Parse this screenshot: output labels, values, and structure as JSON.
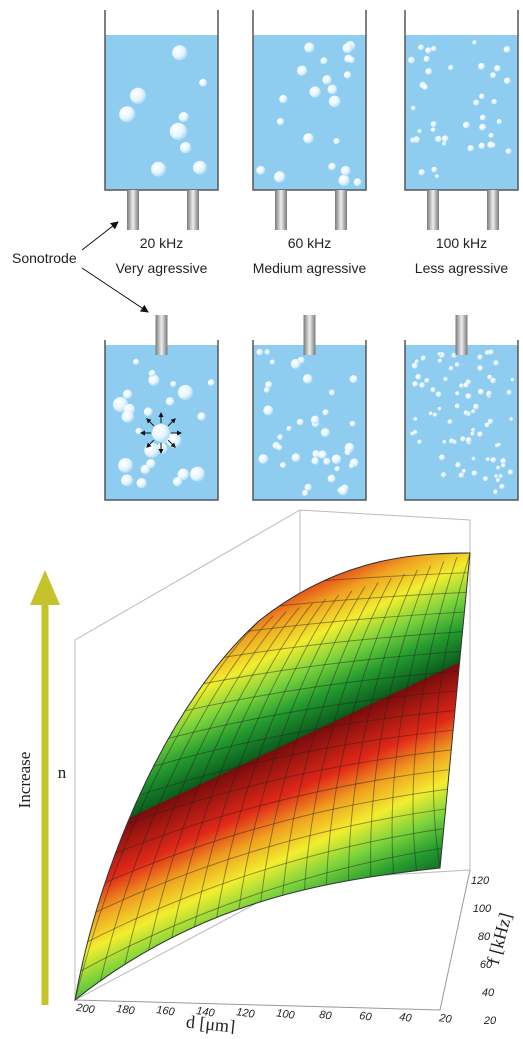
{
  "diagram": {
    "callout": "Sonotrode",
    "columns": [
      {
        "frequency": "20 kHz",
        "description": "Very agressive"
      },
      {
        "frequency": "60 kHz",
        "description": "Medium agressive"
      },
      {
        "frequency": "100 kHz",
        "description": "Less agressive"
      }
    ]
  },
  "plot": {
    "z_label": "n",
    "arrow_label": "Increase",
    "x_label": "d [μm]",
    "x_ticks": [
      200,
      180,
      160,
      140,
      120,
      100,
      80,
      60,
      40,
      20
    ],
    "y_label": "f [kHz]",
    "y_ticks": [
      20,
      40,
      60,
      80,
      100,
      120
    ]
  }
}
